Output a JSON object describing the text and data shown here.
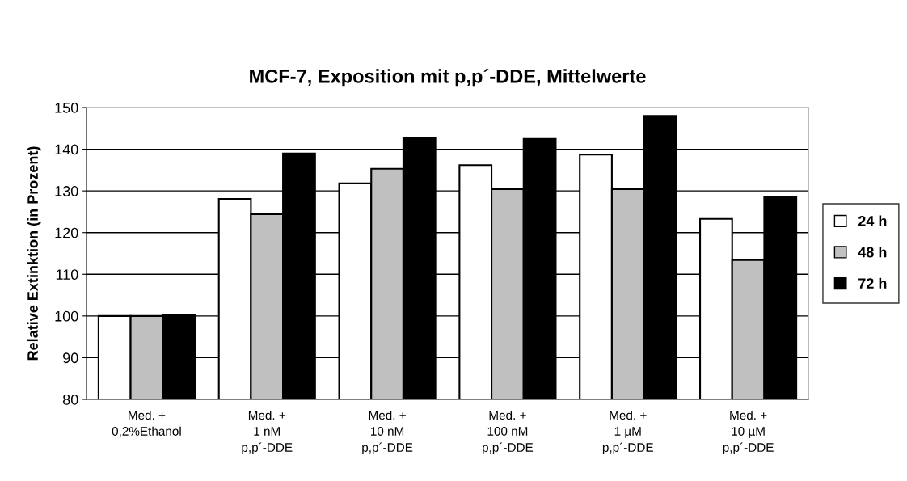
{
  "chart_data": {
    "type": "bar",
    "title": "MCF-7, Exposition mit p,p´-DDE, Mittelwerte",
    "ylabel": "Relative Extinktion (in Prozent)",
    "categories": [
      "Med. +\n0,2%Ethanol",
      "Med. +\n1 nM\np,p´-DDE",
      "Med. +\n10 nM\np,p´-DDE",
      "Med. +\n100 nM\np,p´-DDE",
      "Med. +\n1 µM\np,p´-DDE",
      "Med. +\n10 µM\np,p´-DDE"
    ],
    "series": [
      {
        "name": "24 h",
        "color": "#ffffff",
        "values": [
          100,
          128.1,
          131.8,
          136.2,
          138.7,
          123.3
        ]
      },
      {
        "name": "48 h",
        "color": "#c0c0c0",
        "values": [
          100,
          124.4,
          135.3,
          130.4,
          130.4,
          113.4
        ]
      },
      {
        "name": "72 h",
        "color": "#000000",
        "values": [
          100.2,
          139,
          142.7,
          142.5,
          148,
          128.6
        ]
      }
    ],
    "ylim": [
      80,
      150
    ],
    "yticks": [
      80,
      90,
      100,
      110,
      120,
      130,
      140,
      150
    ],
    "grid": "y",
    "legend": "right"
  }
}
